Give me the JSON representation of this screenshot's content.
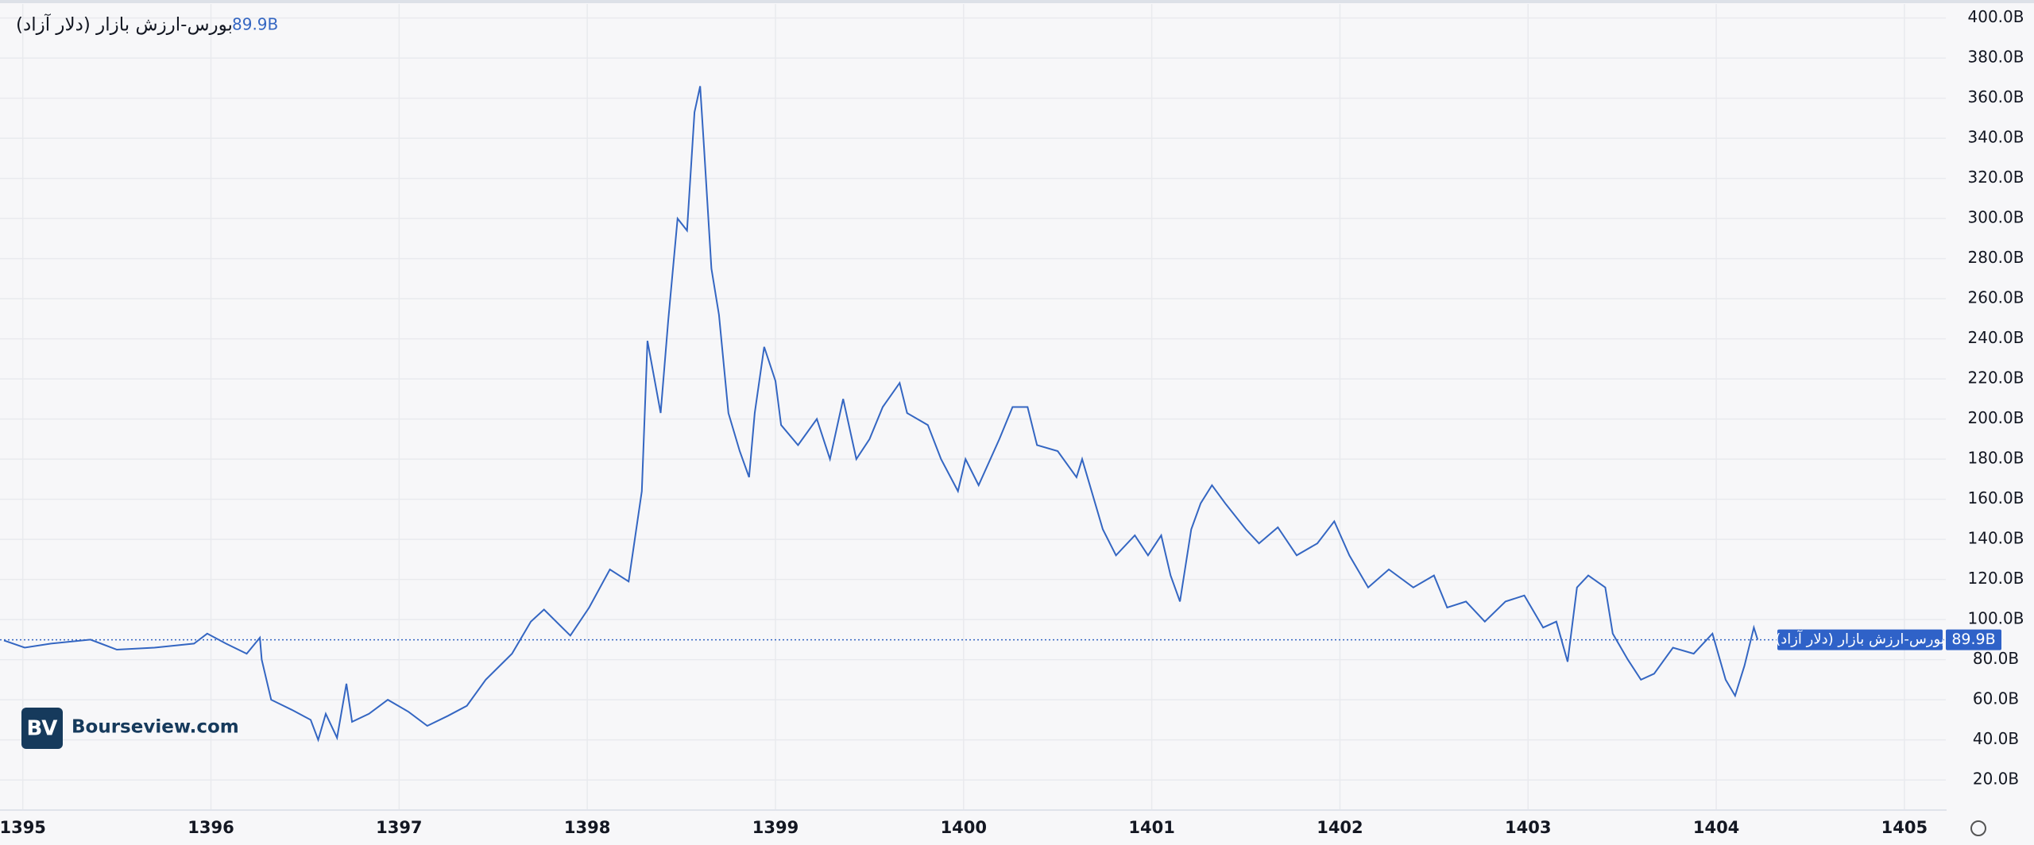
{
  "chart_data": {
    "type": "line",
    "series": [
      {
        "name": "بورس-ارزش بازار (دلار آزاد)",
        "color": "#3466c2",
        "values": [
          89.6,
          86,
          88,
          90,
          85,
          86,
          88,
          93,
          88,
          83,
          91,
          80,
          60,
          55,
          50,
          40,
          53,
          41,
          68,
          49,
          53,
          60,
          54,
          47,
          52,
          57,
          70,
          83,
          99,
          105,
          92,
          106,
          125,
          119,
          164,
          239,
          203,
          249,
          300,
          294,
          353,
          366,
          336,
          275,
          252,
          203,
          184,
          171,
          203,
          236,
          219,
          197,
          187,
          200,
          180,
          210,
          180,
          190,
          206,
          218,
          203,
          197,
          180,
          164,
          180,
          167,
          190,
          206,
          206,
          187,
          184,
          171,
          180,
          145,
          132,
          142,
          132,
          142,
          122,
          109,
          145,
          158,
          167,
          158,
          145,
          138,
          146,
          132,
          138,
          149,
          132,
          116,
          125,
          116,
          122,
          106,
          109,
          99,
          109,
          112,
          96,
          99,
          79,
          116,
          122,
          116,
          93,
          80,
          70,
          73,
          86,
          83,
          93,
          70,
          62,
          77,
          96,
          89.9
        ]
      }
    ],
    "x": [
      1394.9,
      1395.01,
      1395.15,
      1395.36,
      1395.5,
      1395.7,
      1395.91,
      1395.98,
      1396.08,
      1396.19,
      1396.26,
      1396.27,
      1396.32,
      1396.43,
      1396.53,
      1396.57,
      1396.61,
      1396.67,
      1396.72,
      1396.75,
      1396.84,
      1396.94,
      1397.05,
      1397.15,
      1397.26,
      1397.36,
      1397.46,
      1397.6,
      1397.7,
      1397.77,
      1397.91,
      1398.01,
      1398.12,
      1398.22,
      1398.29,
      1398.32,
      1398.39,
      1398.43,
      1398.48,
      1398.53,
      1398.57,
      1398.6,
      1398.62,
      1398.66,
      1398.7,
      1398.75,
      1398.81,
      1398.86,
      1398.89,
      1398.94,
      1399.0,
      1399.03,
      1399.12,
      1399.22,
      1399.29,
      1399.36,
      1399.43,
      1399.5,
      1399.57,
      1399.66,
      1399.7,
      1399.81,
      1399.88,
      1399.97,
      1400.01,
      1400.08,
      1400.19,
      1400.26,
      1400.34,
      1400.39,
      1400.5,
      1400.6,
      1400.63,
      1400.74,
      1400.81,
      1400.91,
      1400.98,
      1401.05,
      1401.1,
      1401.15,
      1401.21,
      1401.26,
      1401.32,
      1401.39,
      1401.5,
      1401.57,
      1401.67,
      1401.77,
      1401.88,
      1401.97,
      1402.05,
      1402.15,
      1402.26,
      1402.39,
      1402.5,
      1402.57,
      1402.67,
      1402.77,
      1402.88,
      1402.98,
      1403.08,
      1403.15,
      1403.21,
      1403.26,
      1403.32,
      1403.41,
      1403.45,
      1403.53,
      1403.6,
      1403.67,
      1403.77,
      1403.88,
      1403.98,
      1404.05,
      1404.1,
      1404.15,
      1404.2,
      1404.22
    ],
    "last_label": "89.9B",
    "xlim": [
      1394.9,
      1405.22
    ],
    "xticks": [
      1395,
      1396,
      1397,
      1398,
      1399,
      1400,
      1401,
      1402,
      1403,
      1404,
      1405
    ],
    "ylim": [
      5,
      407
    ],
    "yticks": [
      {
        "value": 20,
        "label": "20.0B"
      },
      {
        "value": 40,
        "label": "40.0B"
      },
      {
        "value": 60,
        "label": "60.0B"
      },
      {
        "value": 80,
        "label": "80.0B"
      },
      {
        "value": 100,
        "label": "100.0B"
      },
      {
        "value": 120,
        "label": "120.0B"
      },
      {
        "value": 140,
        "label": "140.0B"
      },
      {
        "value": 160,
        "label": "160.0B"
      },
      {
        "value": 180,
        "label": "180.0B"
      },
      {
        "value": 200,
        "label": "200.0B"
      },
      {
        "value": 220,
        "label": "220.0B"
      },
      {
        "value": 240,
        "label": "240.0B"
      },
      {
        "value": 260,
        "label": "260.0B"
      },
      {
        "value": 280,
        "label": "280.0B"
      },
      {
        "value": 300,
        "label": "300.0B"
      },
      {
        "value": 320,
        "label": "320.0B"
      },
      {
        "value": 340,
        "label": "340.0B"
      },
      {
        "value": 360,
        "label": "360.0B"
      },
      {
        "value": 380,
        "label": "380.0B"
      },
      {
        "value": 400,
        "label": "400.0B"
      }
    ],
    "grid": true,
    "logo": "BV",
    "watermark": "Bourseview.com"
  }
}
